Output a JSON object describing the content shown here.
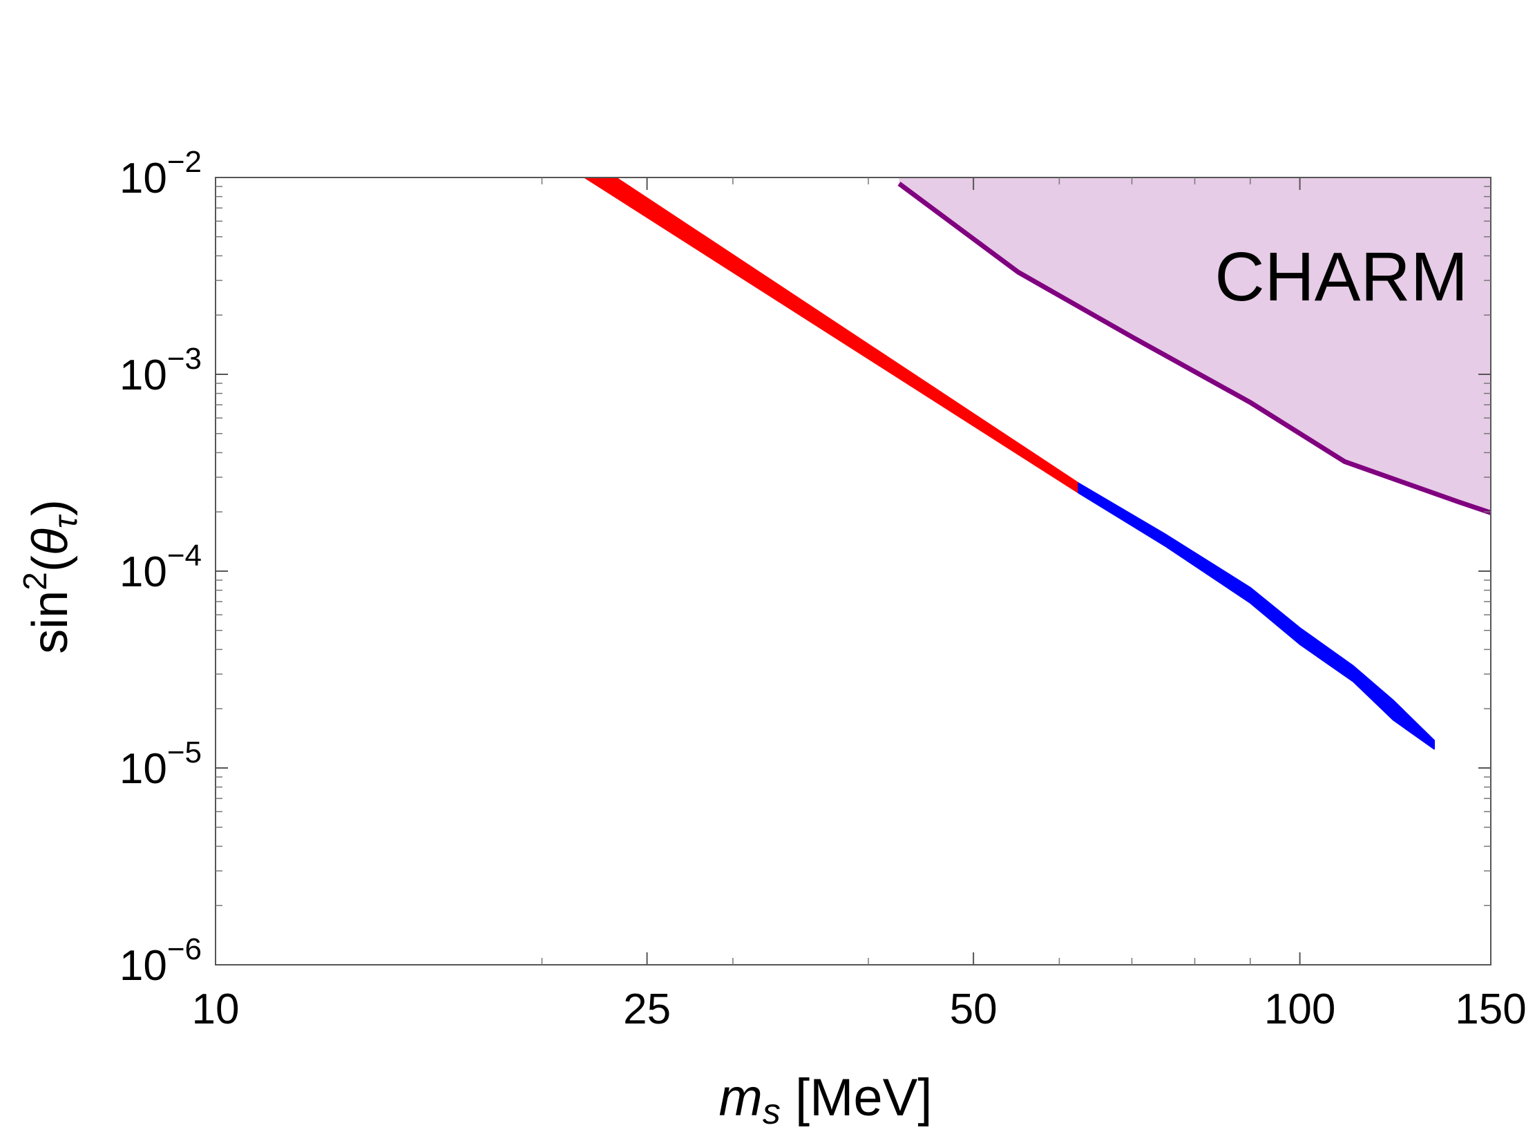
{
  "chart_data": {
    "type": "line",
    "x_scale": "log",
    "y_scale": "log",
    "xlim": [
      10,
      150
    ],
    "ylim": [
      1e-06,
      0.01
    ],
    "grid": false,
    "x_ticks": [
      {
        "value": 10,
        "label": "10"
      },
      {
        "value": 25,
        "label": "25"
      },
      {
        "value": 50,
        "label": "50"
      },
      {
        "value": 100,
        "label": "100"
      },
      {
        "value": 150,
        "label": "150"
      }
    ],
    "y_ticks": [
      {
        "value": 0.01,
        "base": "10",
        "exp": "−2"
      },
      {
        "value": 0.001,
        "base": "10",
        "exp": "−3"
      },
      {
        "value": 0.0001,
        "base": "10",
        "exp": "−4"
      },
      {
        "value": 1e-05,
        "base": "10",
        "exp": "−5"
      },
      {
        "value": 1e-06,
        "base": "10",
        "exp": "−6"
      }
    ],
    "xlabel": {
      "symbol": "m",
      "subscript": "s",
      "unit": " [MeV]"
    },
    "ylabel": {
      "func": "sin",
      "power": "2",
      "open": "(",
      "symbol": "θ",
      "subscript": "τ",
      "close": ")"
    },
    "annotation": "CHARM",
    "series": [
      {
        "kind": "band",
        "color": "#ff0000",
        "upper": [
          [
            23.4,
            0.01
          ],
          [
            62.5,
            0.00028
          ]
        ],
        "lower": [
          [
            21.9,
            0.01
          ],
          [
            62.5,
            0.00025
          ]
        ]
      },
      {
        "kind": "band",
        "color": "#0000ff",
        "upper": [
          [
            62.5,
            0.00028
          ],
          [
            75,
            0.000155
          ],
          [
            90,
            8.25e-05
          ],
          [
            100,
            5.15e-05
          ],
          [
            112,
            3.3e-05
          ],
          [
            122,
            2.2e-05
          ],
          [
            133,
            1.38e-05
          ]
        ],
        "lower": [
          [
            62.5,
            0.00025
          ],
          [
            75,
            0.000135
          ],
          [
            90,
            6.9e-05
          ],
          [
            100,
            4.25e-05
          ],
          [
            112,
            2.75e-05
          ],
          [
            122,
            1.75e-05
          ],
          [
            133,
            1.25e-05
          ]
        ]
      },
      {
        "kind": "filled-region",
        "color": "#800080",
        "fill": "#e6cce6",
        "boundary": [
          [
            42.7,
            0.0093
          ],
          [
            55,
            0.0033
          ],
          [
            70,
            0.00155
          ],
          [
            90,
            0.00072
          ],
          [
            110,
            0.00036
          ],
          [
            140,
            0.000225
          ],
          [
            150,
            0.000198
          ]
        ]
      }
    ]
  }
}
